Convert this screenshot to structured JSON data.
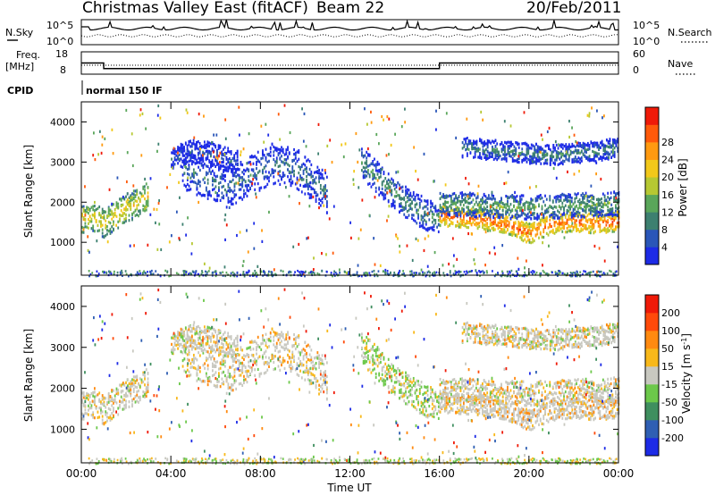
{
  "header": {
    "station": "Christmas Valley East (fitACF)",
    "beam": "Beam 22",
    "date": "20/Feb/2011"
  },
  "noise_panel": {
    "left_label": "N.Sky",
    "right_label": "N.Search",
    "left_ticks": [
      "10^5",
      "10^0"
    ],
    "right_ticks": [
      "10^5",
      "10^0"
    ]
  },
  "freq_panel": {
    "left_label_1": "Freq.",
    "left_label_2": "[MHz]",
    "left_ticks": [
      "18",
      "8"
    ],
    "right_ticks": [
      "60",
      "0"
    ],
    "right_label": "Nave",
    "freq_steps": [
      [
        0,
        13
      ],
      [
        1,
        10.5
      ],
      [
        16,
        13
      ],
      [
        24,
        13
      ]
    ],
    "nave_level": 24
  },
  "cpid": {
    "label": "CPID",
    "mode": "normal 150 IF"
  },
  "chart_data": [
    {
      "type": "heatmap",
      "title": "",
      "xlabel": "",
      "ylabel": "Slant Range [km]",
      "x_ticks": [
        "00:00",
        "04:00",
        "08:00",
        "12:00",
        "16:00",
        "20:00",
        "00:00"
      ],
      "y_ticks": [
        "1000",
        "2000",
        "3000",
        "4000"
      ],
      "ylim": [
        180,
        4500
      ],
      "xlim": [
        0,
        24
      ],
      "colorbar": {
        "label": "Power [dB]",
        "ticks": [
          "4",
          "8",
          "12",
          "16",
          "20",
          "24",
          "28"
        ],
        "colors": [
          "#1d2be6",
          "#2a56b8",
          "#3d8070",
          "#5aa65a",
          "#b6c832",
          "#f2c81a",
          "#ff9a10",
          "#ff5a0a",
          "#ef1a08"
        ]
      },
      "echo_bands": [
        {
          "t": [
            0.0,
            0.5,
            1.0,
            1.5,
            2.0,
            2.5,
            3.0
          ],
          "r": [
            1600,
            1650,
            1500,
            1700,
            1900,
            2000,
            2200
          ],
          "w": 350,
          "p": 18
        },
        {
          "t": [
            4.5,
            5.5,
            6.5,
            7.5,
            8.5,
            9.5,
            10.5,
            11.0
          ],
          "r": [
            2900,
            2600,
            2400,
            2700,
            3000,
            2900,
            2500,
            2200
          ],
          "w": 500,
          "p": 8
        },
        {
          "t": [
            12.5,
            13.5,
            14.5,
            15.5,
            16.0
          ],
          "r": [
            3000,
            2500,
            2000,
            1700,
            1600
          ],
          "w": 400,
          "p": 10
        },
        {
          "t": [
            16.0,
            17.0,
            18.0,
            19.0,
            20.0,
            21.0,
            22.0,
            23.0,
            24.0
          ],
          "r": [
            1700,
            1650,
            1600,
            1500,
            1250,
            1500,
            1550,
            1500,
            1550
          ],
          "w": 250,
          "p": 24
        },
        {
          "t": [
            16.0,
            18.0,
            20.0,
            22.0,
            24.0
          ],
          "r": [
            2000,
            1950,
            1900,
            1950,
            2000
          ],
          "w": 300,
          "p": 12
        },
        {
          "t": [
            17.0,
            19.0,
            21.0,
            23.0,
            24.0
          ],
          "r": [
            3400,
            3300,
            3200,
            3300,
            3400
          ],
          "w": 250,
          "p": 9
        },
        {
          "t": [
            4.0,
            5.0,
            6.0,
            7.0
          ],
          "r": [
            3100,
            3300,
            3200,
            3000
          ],
          "w": 300,
          "p": 6
        }
      ]
    },
    {
      "type": "heatmap",
      "title": "",
      "xlabel": "Time UT",
      "ylabel": "Slant Range [km]",
      "x_ticks": [
        "00:00",
        "04:00",
        "08:00",
        "12:00",
        "16:00",
        "20:00",
        "00:00"
      ],
      "y_ticks": [
        "1000",
        "2000",
        "3000",
        "4000"
      ],
      "ylim": [
        180,
        4500
      ],
      "xlim": [
        0,
        24
      ],
      "colorbar": {
        "label": "Velocity [m s-1]",
        "ticks": [
          "200",
          "100",
          "50",
          "15",
          "-15",
          "-50",
          "-100",
          "-200"
        ],
        "colors": [
          "#1d2be6",
          "#2f5fb3",
          "#3f8f5f",
          "#6cc84a",
          "#c8c8c0",
          "#f8b81a",
          "#ff8a10",
          "#ff4a0a",
          "#ef1a08"
        ]
      }
    }
  ]
}
